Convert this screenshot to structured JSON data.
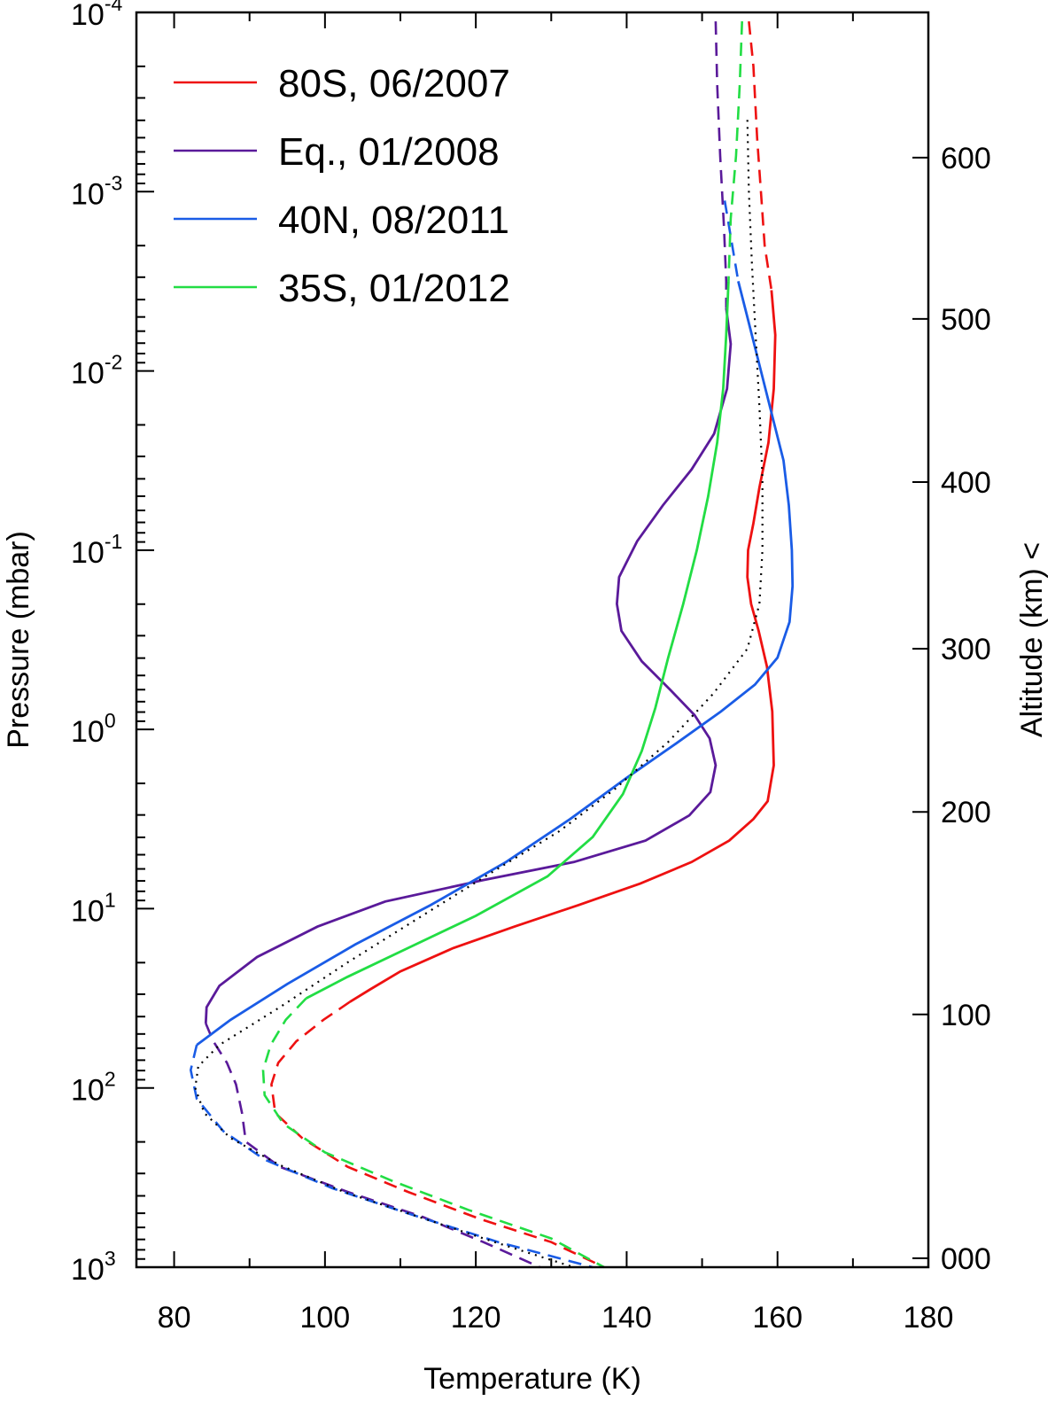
{
  "chart_data": {
    "type": "line",
    "xlabel": "Temperature (K)",
    "ylabel": "Pressure (mbar)",
    "y2label": "Altitude (km) <",
    "xlim": [
      75,
      180
    ],
    "ylim_log10": [
      -4,
      3
    ],
    "y_scale": "log",
    "y_inverted": true,
    "legend_position": "top-left",
    "x_ticks": [
      80,
      100,
      120,
      140,
      160,
      180
    ],
    "x_tick_labels": [
      "80",
      "100",
      "120",
      "140",
      "160",
      "180"
    ],
    "y_ticks": [
      {
        "exp": -4,
        "base": "10",
        "sup": "-4"
      },
      {
        "exp": -3,
        "base": "10",
        "sup": "-3"
      },
      {
        "exp": -2,
        "base": "10",
        "sup": "-2"
      },
      {
        "exp": -1,
        "base": "10",
        "sup": "-1"
      },
      {
        "exp": 0,
        "base": "10",
        "sup": "0"
      },
      {
        "exp": 1,
        "base": "10",
        "sup": "1"
      },
      {
        "exp": 2,
        "base": "10",
        "sup": "2"
      },
      {
        "exp": 3,
        "base": "10",
        "sup": "3"
      }
    ],
    "altitude_ticks": [
      {
        "label": "000",
        "log10p": 2.95
      },
      {
        "label": "100",
        "log10p": 1.59
      },
      {
        "label": "200",
        "log10p": 0.46
      },
      {
        "label": "300",
        "log10p": -0.45
      },
      {
        "label": "400",
        "log10p": -1.38
      },
      {
        "label": "500",
        "log10p": -2.29
      },
      {
        "label": "600",
        "log10p": -3.19
      }
    ],
    "series": [
      {
        "name": "80S, 06/2007",
        "color": "#ee1111",
        "dashed_top": [
          [
            156.2,
            -3.95
          ],
          [
            156.8,
            -3.7
          ],
          [
            157.3,
            -3.3
          ],
          [
            157.8,
            -3.0
          ],
          [
            158.3,
            -2.7
          ],
          [
            159.2,
            -2.45
          ]
        ],
        "solid": [
          [
            159.2,
            -2.45
          ],
          [
            159.7,
            -2.2
          ],
          [
            159.5,
            -1.9
          ],
          [
            158.8,
            -1.6
          ],
          [
            157.6,
            -1.35
          ],
          [
            156.8,
            -1.15
          ],
          [
            156.1,
            -1.0
          ],
          [
            156.0,
            -0.85
          ],
          [
            156.5,
            -0.7
          ],
          [
            157.5,
            -0.55
          ],
          [
            158.6,
            -0.35
          ],
          [
            159.3,
            -0.1
          ],
          [
            159.5,
            0.2
          ],
          [
            158.7,
            0.4
          ],
          [
            156.8,
            0.5
          ],
          [
            153.6,
            0.62
          ],
          [
            148.6,
            0.74
          ],
          [
            141.8,
            0.86
          ],
          [
            133.6,
            0.98
          ],
          [
            125.1,
            1.1
          ],
          [
            117.0,
            1.22
          ],
          [
            110.0,
            1.35
          ],
          [
            106.0,
            1.45
          ],
          [
            103.3,
            1.52
          ]
        ],
        "dashed_bottom": [
          [
            103.3,
            1.52
          ],
          [
            99.8,
            1.62
          ],
          [
            96.2,
            1.74
          ],
          [
            93.8,
            1.86
          ],
          [
            92.9,
            1.98
          ],
          [
            93.4,
            2.14
          ],
          [
            97.0,
            2.28
          ],
          [
            103.0,
            2.44
          ],
          [
            111.0,
            2.58
          ],
          [
            120.5,
            2.73
          ],
          [
            130.0,
            2.86
          ],
          [
            137.0,
            3.0
          ]
        ]
      },
      {
        "name": "Eq., 01/2008",
        "color": "#5a1a9a",
        "dashed_top": [
          [
            151.8,
            -3.95
          ],
          [
            152.0,
            -3.6
          ],
          [
            152.4,
            -3.2
          ],
          [
            152.9,
            -2.8
          ],
          [
            153.2,
            -2.5
          ],
          [
            153.2,
            -2.35
          ]
        ],
        "solid": [
          [
            153.2,
            -2.35
          ],
          [
            153.8,
            -2.15
          ],
          [
            153.3,
            -1.9
          ],
          [
            151.6,
            -1.65
          ],
          [
            148.6,
            -1.45
          ],
          [
            144.8,
            -1.25
          ],
          [
            141.4,
            -1.05
          ],
          [
            139.0,
            -0.85
          ],
          [
            138.7,
            -0.7
          ],
          [
            139.3,
            -0.55
          ],
          [
            142.0,
            -0.38
          ],
          [
            145.8,
            -0.22
          ],
          [
            149.0,
            -0.08
          ],
          [
            151.0,
            0.05
          ],
          [
            151.8,
            0.2
          ],
          [
            151.1,
            0.35
          ],
          [
            148.3,
            0.48
          ],
          [
            142.5,
            0.62
          ],
          [
            133.0,
            0.74
          ],
          [
            121.0,
            0.84
          ],
          [
            108.0,
            0.96
          ],
          [
            99.0,
            1.1
          ],
          [
            91.0,
            1.27
          ],
          [
            86.0,
            1.43
          ],
          [
            84.3,
            1.55
          ],
          [
            84.2,
            1.64
          ]
        ],
        "dashed_bottom": [
          [
            84.2,
            1.64
          ],
          [
            85.2,
            1.74
          ],
          [
            87.0,
            1.86
          ],
          [
            88.2,
            1.98
          ],
          [
            89.0,
            2.14
          ],
          [
            89.5,
            2.3
          ],
          [
            94.0,
            2.44
          ],
          [
            103.0,
            2.58
          ],
          [
            113.0,
            2.72
          ],
          [
            121.0,
            2.86
          ],
          [
            128.5,
            3.0
          ]
        ]
      },
      {
        "name": "40N, 08/2011",
        "color": "#1a5ce6",
        "dashed_top": [
          [
            153.0,
            -2.95
          ],
          [
            153.8,
            -2.75
          ],
          [
            154.8,
            -2.5
          ]
        ],
        "solid": [
          [
            154.8,
            -2.5
          ],
          [
            156.0,
            -2.3
          ],
          [
            157.2,
            -2.1
          ],
          [
            158.4,
            -1.9
          ],
          [
            159.6,
            -1.7
          ],
          [
            160.8,
            -1.5
          ],
          [
            161.5,
            -1.25
          ],
          [
            161.9,
            -1.0
          ],
          [
            162.0,
            -0.8
          ],
          [
            161.6,
            -0.6
          ],
          [
            160.0,
            -0.4
          ],
          [
            157.0,
            -0.25
          ],
          [
            152.5,
            -0.1
          ],
          [
            146.5,
            0.08
          ],
          [
            140.0,
            0.27
          ],
          [
            132.5,
            0.5
          ],
          [
            124.0,
            0.74
          ],
          [
            114.0,
            0.98
          ],
          [
            104.0,
            1.2
          ],
          [
            95.0,
            1.42
          ],
          [
            87.5,
            1.62
          ],
          [
            83.0,
            1.76
          ]
        ],
        "dashed_bottom": [
          [
            83.0,
            1.76
          ],
          [
            82.2,
            1.9
          ],
          [
            83.0,
            2.06
          ],
          [
            86.5,
            2.24
          ],
          [
            92.0,
            2.4
          ],
          [
            101.0,
            2.56
          ],
          [
            111.0,
            2.7
          ],
          [
            123.0,
            2.86
          ],
          [
            135.5,
            3.0
          ]
        ]
      },
      {
        "name": "35S, 01/2012",
        "color": "#22dd44",
        "dashed_top": [
          [
            155.3,
            -3.95
          ],
          [
            155.0,
            -3.6
          ],
          [
            154.5,
            -3.2
          ],
          [
            153.8,
            -2.85
          ],
          [
            153.5,
            -2.5
          ]
        ],
        "solid": [
          [
            153.5,
            -2.5
          ],
          [
            153.2,
            -2.2
          ],
          [
            152.8,
            -1.9
          ],
          [
            152.0,
            -1.6
          ],
          [
            150.8,
            -1.3
          ],
          [
            149.3,
            -1.0
          ],
          [
            147.5,
            -0.7
          ],
          [
            145.5,
            -0.4
          ],
          [
            143.8,
            -0.12
          ],
          [
            142.0,
            0.12
          ],
          [
            139.5,
            0.36
          ],
          [
            135.5,
            0.6
          ],
          [
            129.5,
            0.82
          ],
          [
            120.0,
            1.04
          ],
          [
            111.0,
            1.22
          ],
          [
            103.0,
            1.38
          ],
          [
            97.5,
            1.5
          ]
        ],
        "dashed_bottom": [
          [
            97.5,
            1.5
          ],
          [
            94.8,
            1.62
          ],
          [
            92.8,
            1.76
          ],
          [
            91.8,
            1.9
          ],
          [
            92.0,
            2.04
          ],
          [
            94.5,
            2.2
          ],
          [
            100.0,
            2.36
          ],
          [
            109.0,
            2.52
          ],
          [
            119.0,
            2.68
          ],
          [
            130.0,
            2.84
          ],
          [
            137.0,
            3.0
          ]
        ]
      },
      {
        "color": "#000000",
        "dotted": [
          [
            156.0,
            -3.4
          ],
          [
            156.2,
            -3.0
          ],
          [
            156.6,
            -2.6
          ],
          [
            157.1,
            -2.2
          ],
          [
            157.6,
            -1.8
          ],
          [
            158.0,
            -1.4
          ],
          [
            158.0,
            -1.0
          ],
          [
            157.6,
            -0.7
          ],
          [
            156.0,
            -0.45
          ],
          [
            151.5,
            -0.2
          ],
          [
            145.5,
            0.07
          ],
          [
            138.5,
            0.33
          ],
          [
            131.0,
            0.57
          ],
          [
            122.0,
            0.8
          ],
          [
            112.5,
            1.05
          ],
          [
            103.0,
            1.3
          ],
          [
            94.0,
            1.55
          ],
          [
            86.0,
            1.76
          ],
          [
            83.2,
            1.88
          ],
          [
            82.8,
            2.0
          ],
          [
            84.0,
            2.14
          ],
          [
            87.5,
            2.28
          ],
          [
            94.0,
            2.43
          ],
          [
            102.5,
            2.58
          ],
          [
            112.5,
            2.72
          ],
          [
            122.5,
            2.86
          ],
          [
            133.0,
            3.0
          ]
        ]
      }
    ]
  }
}
